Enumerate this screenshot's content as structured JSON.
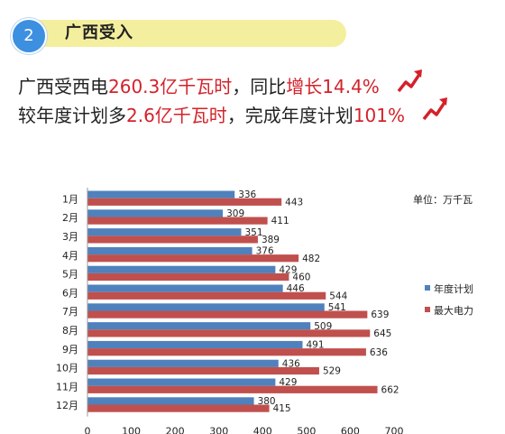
{
  "section": {
    "number": "2",
    "title": "广西受入"
  },
  "headline": {
    "line1": {
      "p1": "广西受西电",
      "v1": "260.3亿千瓦时",
      "p2": "，同比",
      "v2": "增长14.4%"
    },
    "line2": {
      "p1": "较年度计划多",
      "v1": "2.6亿千瓦时",
      "p2": "，完成年度计划",
      "v2": "101%"
    }
  },
  "colors": {
    "accent_red": "#d4222a",
    "series_plan": "#4f81bd",
    "series_max": "#c0504d",
    "pill": "#f4ef9e",
    "badge": "#3d8fe0"
  },
  "icons": {
    "trend": "red-rising-arrow-icon"
  },
  "chart_data": {
    "type": "bar",
    "orientation": "horizontal",
    "unit_label": "单位：万千瓦",
    "categories": [
      "1月",
      "2月",
      "3月",
      "4月",
      "5月",
      "6月",
      "7月",
      "8月",
      "9月",
      "10月",
      "11月",
      "12月"
    ],
    "series": [
      {
        "name": "年度计划",
        "values": [
          336,
          309,
          351,
          376,
          429,
          446,
          541,
          509,
          491,
          436,
          429,
          380
        ]
      },
      {
        "name": "最大电力",
        "values": [
          443,
          411,
          389,
          482,
          460,
          544,
          639,
          645,
          636,
          529,
          662,
          415
        ]
      }
    ],
    "xlim": [
      0,
      700
    ],
    "xticks": [
      0,
      100,
      200,
      300,
      400,
      500,
      600,
      700
    ],
    "legend": "right",
    "grid": false
  }
}
